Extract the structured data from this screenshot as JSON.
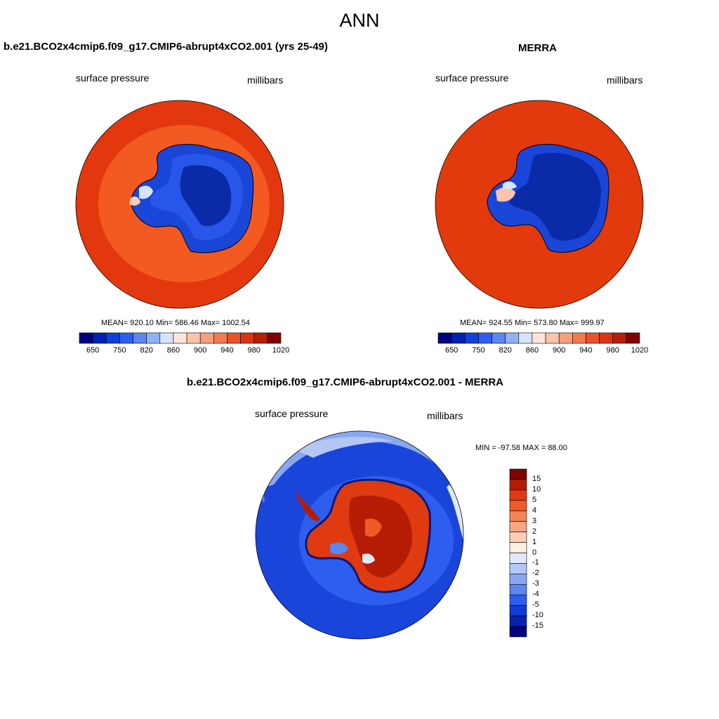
{
  "figure_title": "ANN",
  "panels": [
    {
      "title": "b.e21.BCO2x4cmip6.f09_g17.CMIP6-abrupt4xCO2.001 (yrs 25-49)",
      "variable_label": "surface pressure",
      "units_label": "millibars",
      "stats": "MEAN= 920.10  Min= 586.46  Max= 1002.54",
      "colorbar_ticks": [
        "650",
        "750",
        "820",
        "860",
        "900",
        "940",
        "980",
        "1020"
      ]
    },
    {
      "title": "MERRA",
      "variable_label": "surface pressure",
      "units_label": "millibars",
      "stats": "MEAN= 924.55  Min= 573.80  Max= 999.97",
      "colorbar_ticks": [
        "650",
        "750",
        "820",
        "860",
        "900",
        "940",
        "980",
        "1020"
      ]
    },
    {
      "title": "b.e21.BCO2x4cmip6.f09_g17.CMIP6-abrupt4xCO2.001 - MERRA",
      "variable_label": "surface pressure",
      "units_label": "millibars",
      "stats": "MIN = -97.58 MAX =  88.00",
      "colorbar_ticks": [
        "15",
        "10",
        "5",
        "4",
        "3",
        "2",
        "1",
        "0",
        "-1",
        "-2",
        "-3",
        "-4",
        "-5",
        "-10",
        "-15"
      ]
    }
  ],
  "colors": {
    "abs_palette": [
      "#00007f",
      "#0020b4",
      "#1040d8",
      "#2e5ef0",
      "#5c86f2",
      "#93b0f4",
      "#d6e4fb",
      "#fde6d8",
      "#f8c4aa",
      "#f5a07c",
      "#f37a4e",
      "#ea5228",
      "#da3510",
      "#b51f04",
      "#800000"
    ],
    "diff_palette": [
      "#7f0000",
      "#b41d04",
      "#df3a10",
      "#ef5a28",
      "#f38456",
      "#f7a682",
      "#fbcdb2",
      "#fdeee2",
      "#e0eafc",
      "#b4c8f6",
      "#8aa8f2",
      "#5c86f0",
      "#2e5ef0",
      "#0f3cd8",
      "#0424b0",
      "#00007f"
    ],
    "ocean_model": "#e33a10",
    "ocean_model_inner": "#f25a22",
    "ocean_merra": "#e23a0c",
    "antarctica_interior": "#0a2aa8",
    "antarctica_mid": "#1a46d8",
    "diff_ocean": "#1a45db"
  }
}
